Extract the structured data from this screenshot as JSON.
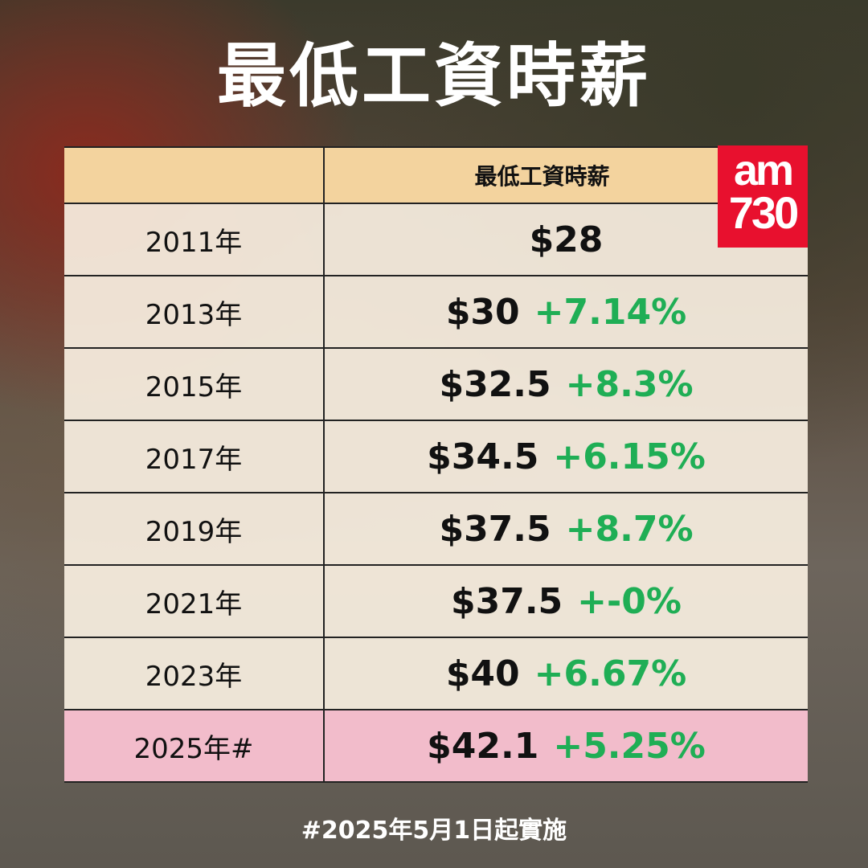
{
  "title": "最低工資時薪",
  "logo": {
    "line1": "am",
    "line2": "730",
    "color": "#e8102e"
  },
  "chart_data": {
    "type": "table",
    "columns": [
      "",
      "最低工資時薪"
    ],
    "rows": [
      {
        "year": "2011年",
        "wage": "$28",
        "change": ""
      },
      {
        "year": "2013年",
        "wage": "$30",
        "change": "+7.14%"
      },
      {
        "year": "2015年",
        "wage": "$32.5",
        "change": "+8.3%"
      },
      {
        "year": "2017年",
        "wage": "$34.5",
        "change": "+6.15%"
      },
      {
        "year": "2019年",
        "wage": "$37.5",
        "change": "+8.7%"
      },
      {
        "year": "2021年",
        "wage": "$37.5",
        "change": "+-0%"
      },
      {
        "year": "2023年",
        "wage": "$40",
        "change": "+6.67%"
      },
      {
        "year": "2025年#",
        "wage": "$42.1",
        "change": "+5.25%"
      }
    ],
    "highlight_row": "2025年#",
    "colors": {
      "header": "#f3d39e",
      "highlight": "#f2bccb",
      "change": "#1fae55"
    }
  },
  "footer": "#2025年5月1日起實施"
}
